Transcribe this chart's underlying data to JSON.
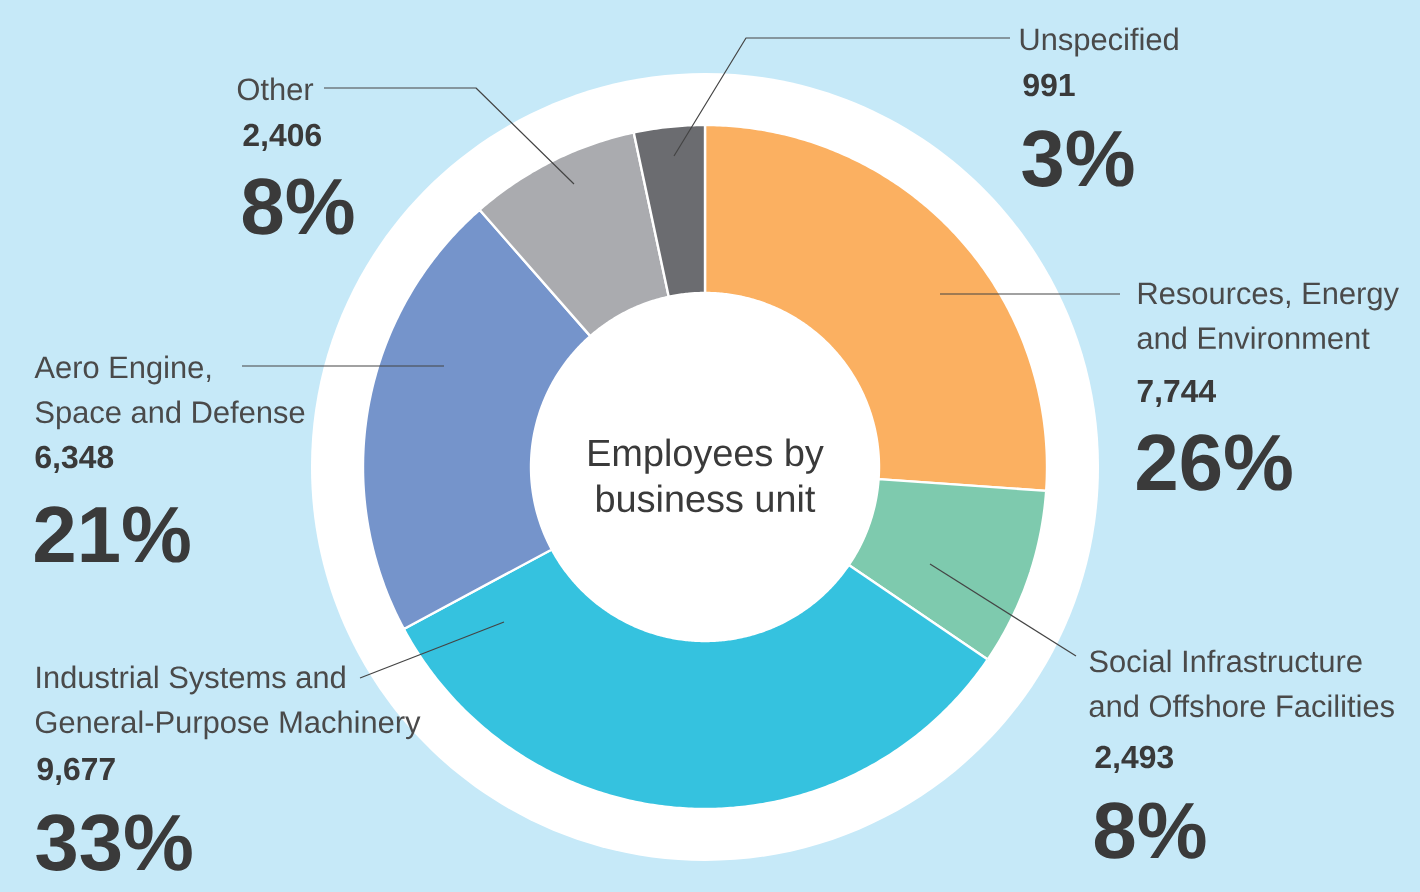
{
  "chart_data": {
    "type": "donut",
    "title": "Employees by business unit",
    "categories": [
      "Resources, Energy and Environment",
      "Social Infrastructure and Offshore Facilities",
      "Industrial Systems and General-Purpose Machinery",
      "Aero Engine, Space and Defense",
      "Other",
      "Unspecified"
    ],
    "values": [
      7744,
      2493,
      9677,
      6348,
      2406,
      991
    ],
    "colors": [
      "#fbb061",
      "#7ecaae",
      "#35c2df",
      "#7594cb",
      "#aaabaf",
      "#6b6c70"
    ],
    "value_labels": [
      "7,744",
      "2,493",
      "9,677",
      "6,348",
      "2,406",
      "991"
    ],
    "annotations": [
      "26%",
      "8%",
      "33%",
      "21%",
      "8%",
      "3%"
    ]
  }
}
